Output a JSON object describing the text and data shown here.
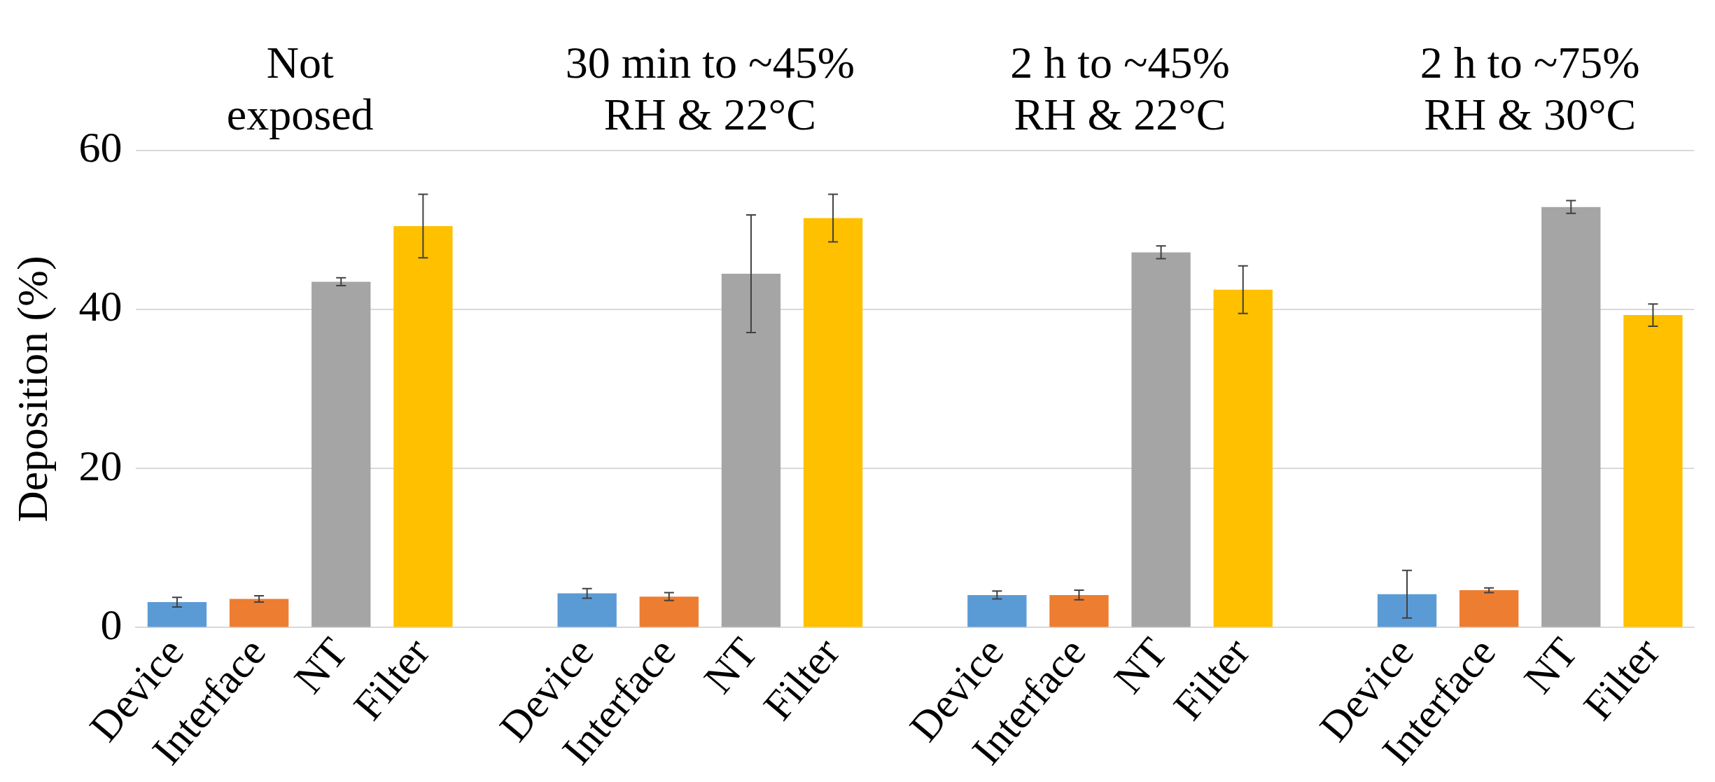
{
  "chart_data": {
    "type": "bar",
    "ylabel": "Deposition (%)",
    "categories": [
      "Device",
      "Interface",
      "NT",
      "Filter",
      null,
      "Device",
      "Interface",
      "NT",
      "Filter",
      null,
      "Device",
      "Interface",
      "NT",
      "Filter",
      null,
      "Device",
      "Interface",
      "NT",
      "Filter"
    ],
    "values": [
      3.2,
      3.6,
      43.5,
      50.5,
      null,
      4.3,
      3.9,
      44.5,
      51.5,
      null,
      4.1,
      4.1,
      47.2,
      42.5,
      null,
      4.2,
      4.7,
      52.9,
      39.3
    ],
    "errors": [
      0.6,
      0.4,
      0.5,
      4,
      null,
      0.6,
      0.5,
      7.4,
      3,
      null,
      0.5,
      0.6,
      0.8,
      3,
      null,
      3,
      0.3,
      0.8,
      1.4
    ],
    "colors": [
      "#5b9bd5",
      "#ed7d31",
      "#a5a5a5",
      "#ffc000",
      "#ffffff",
      "#5b9bd5",
      "#ed7d31",
      "#a5a5a5",
      "#ffc000",
      "#ffffff",
      "#5b9bd5",
      "#ed7d31",
      "#a5a5a5",
      "#ffc000",
      "#ffffff",
      "#5b9bd5",
      "#ed7d31",
      "#a5a5a5",
      "#ffc000"
    ],
    "ylim": [
      0,
      60
    ],
    "yticks": [
      0,
      20,
      40,
      60
    ],
    "grid": "y",
    "legend": false,
    "annotations": [
      "Not\nexposed",
      "30 min to ~45%\nRH & 22°C",
      "2 h to ~45%\nRH & 22°C",
      "2 h to ~75%\nRH & 30°C"
    ]
  }
}
